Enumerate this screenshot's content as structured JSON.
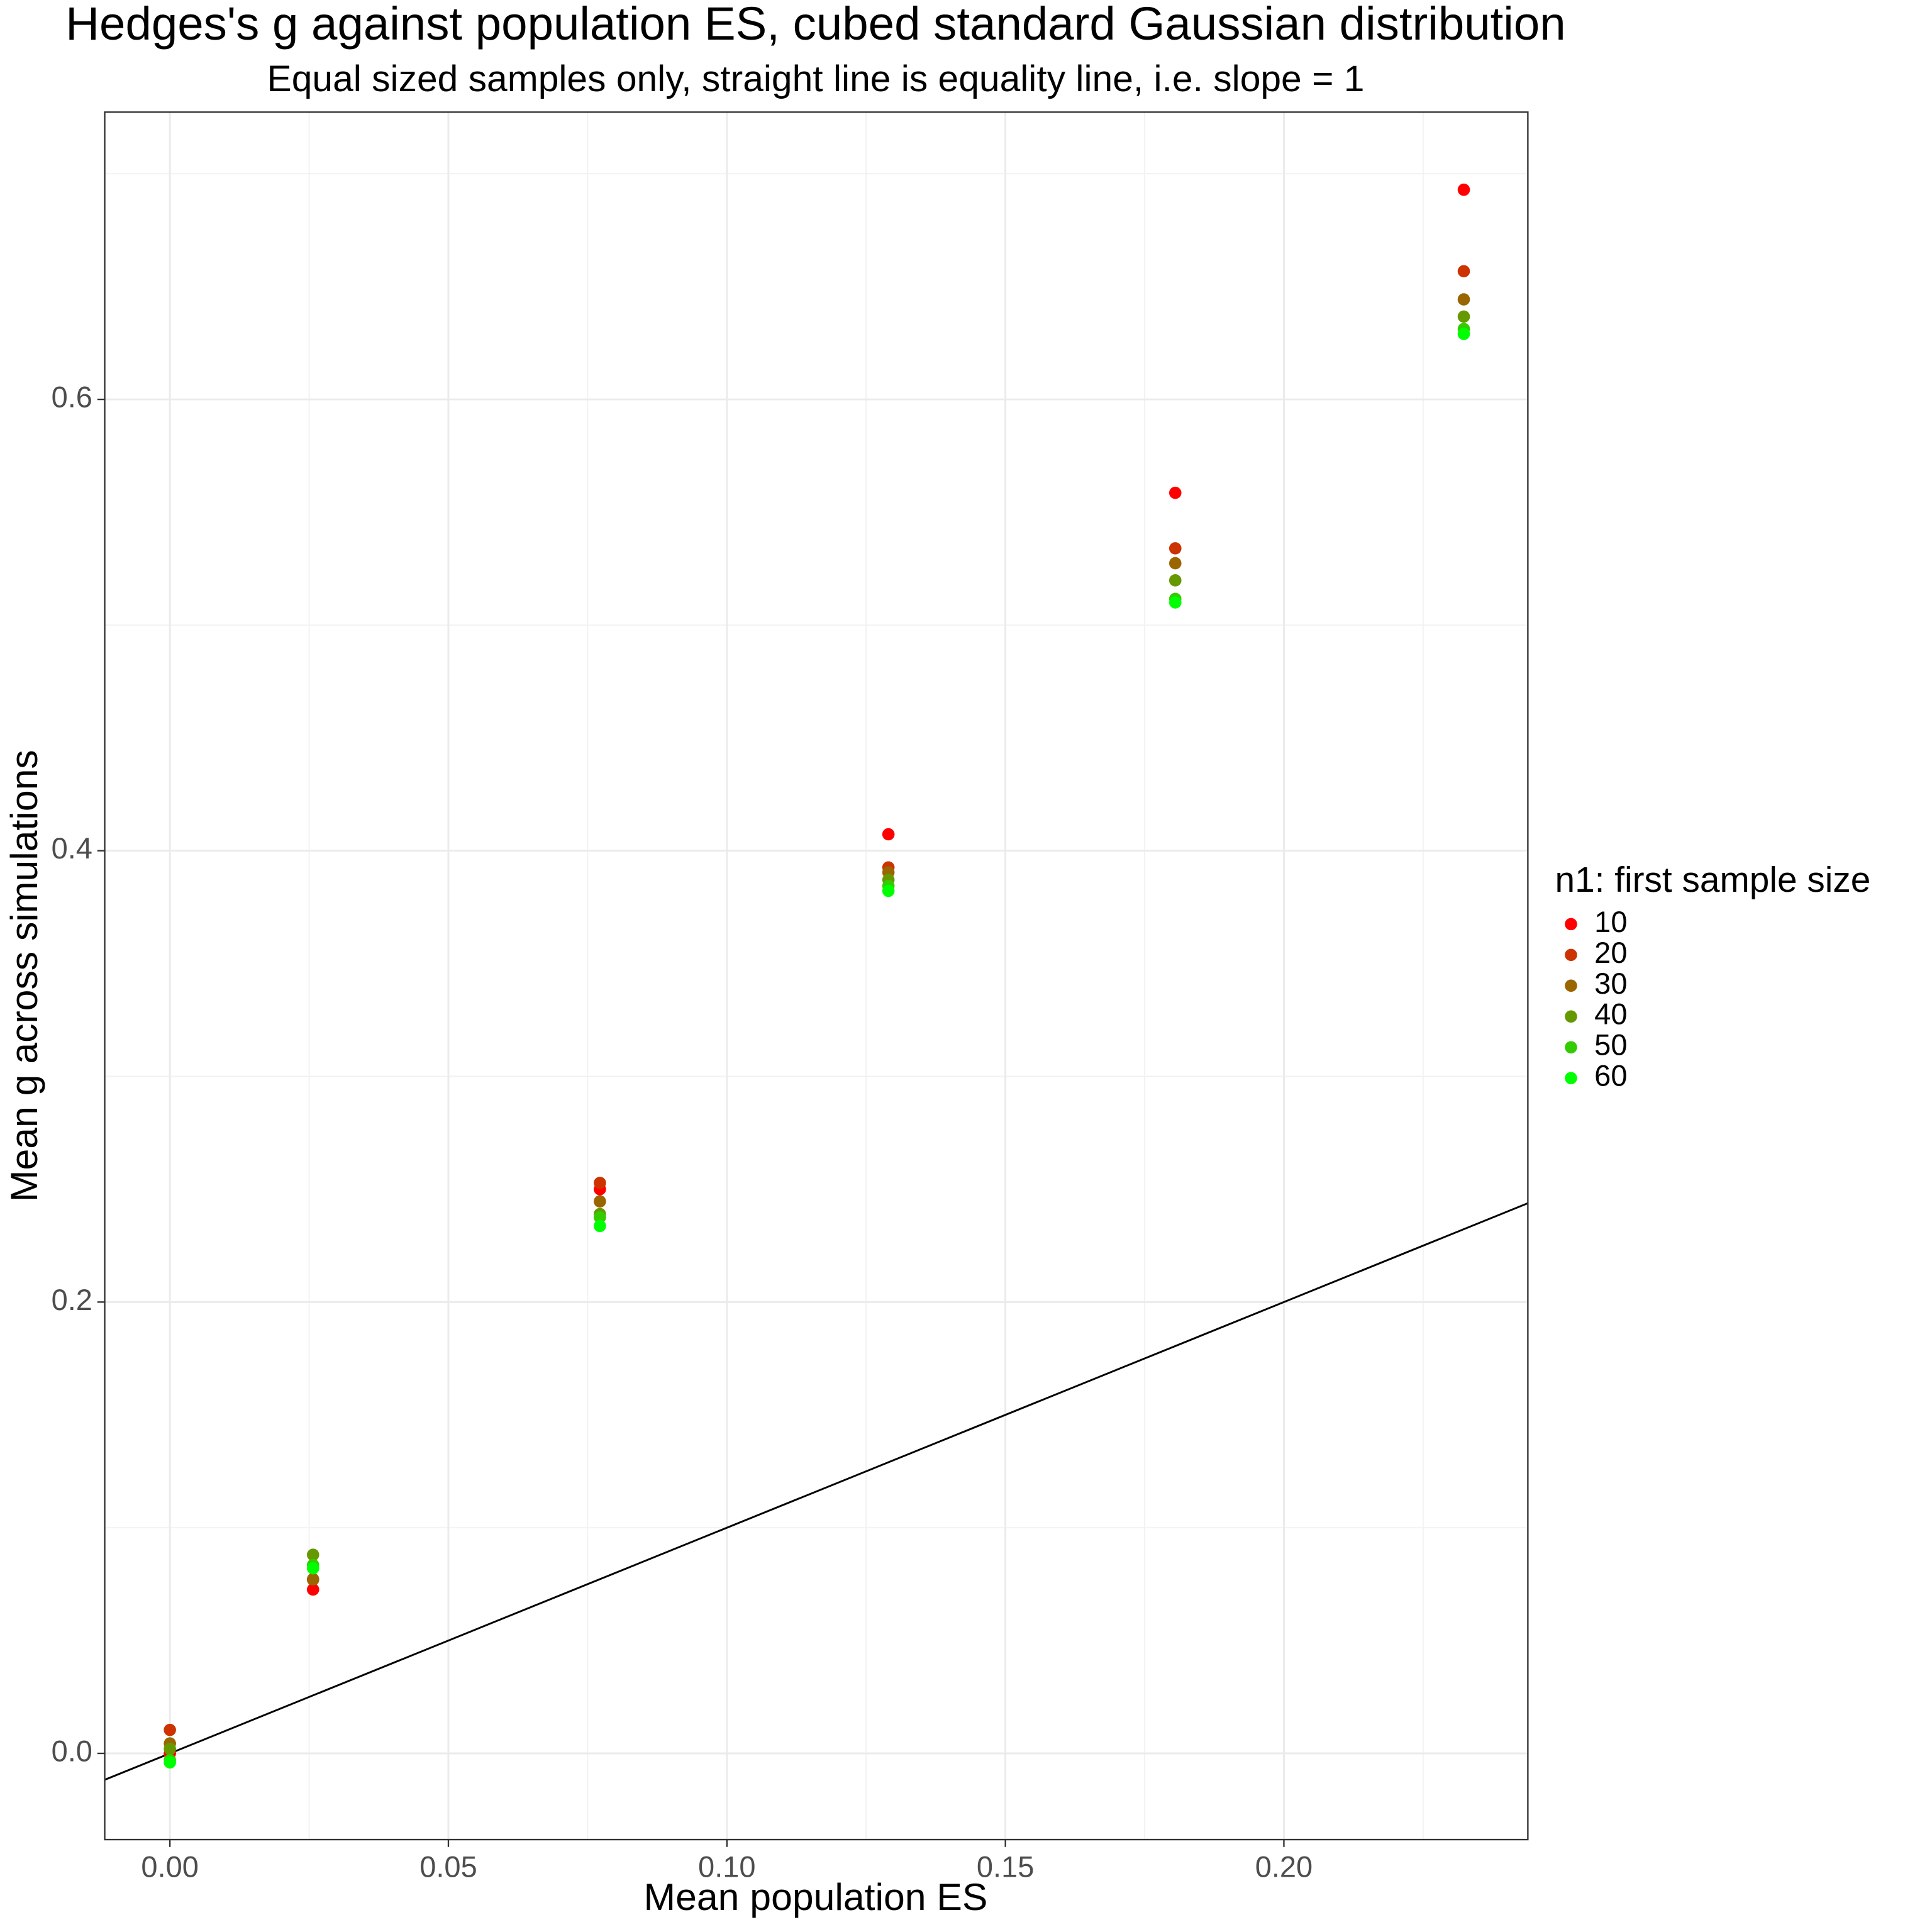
{
  "chart_data": {
    "type": "scatter",
    "title": "Hedges's g against population ES, cubed standard Gaussian distribution",
    "subtitle": "Equal sized samples only, straight line is equality line, i.e. slope = 1",
    "x_label": "Mean population ES",
    "y_label": "Mean g across simulations",
    "legend_title": "n1: first sample size",
    "legend_position": "right",
    "grid": true,
    "x": [
      0,
      0.0257,
      0.0772,
      0.129,
      0.1805,
      0.2323
    ],
    "series": [
      {
        "name": "10",
        "color": "#ff0000",
        "values": [
          0.0,
          0.0726,
          0.25,
          0.4073,
          0.5586,
          0.6929
        ]
      },
      {
        "name": "20",
        "color": "#cc3300",
        "values": [
          0.0104,
          0.077,
          0.2528,
          0.3926,
          0.534,
          0.6568
        ]
      },
      {
        "name": "30",
        "color": "#996600",
        "values": [
          0.0044,
          0.0772,
          0.2446,
          0.3904,
          0.5274,
          0.6443
        ]
      },
      {
        "name": "40",
        "color": "#669900",
        "values": [
          0.002,
          0.088,
          0.239,
          0.3871,
          0.5198,
          0.6367
        ]
      },
      {
        "name": "50",
        "color": "#33cc00",
        "values": [
          -0.003,
          0.0835,
          0.2375,
          0.3844,
          0.5116,
          0.6312
        ]
      },
      {
        "name": "60",
        "color": "#00ff00",
        "values": [
          -0.004,
          0.082,
          0.2337,
          0.3822,
          0.51,
          0.629
        ]
      }
    ],
    "abline": {
      "slope": 1,
      "intercept": 0,
      "color": "#000000"
    },
    "xlim": [
      -0.0117,
      0.2438
    ],
    "ylim": [
      -0.0382,
      0.7273
    ],
    "xticks": [
      {
        "value": 0,
        "label": "0.00"
      },
      {
        "value": 0.05,
        "label": "0.05"
      },
      {
        "value": 0.1,
        "label": "0.10"
      },
      {
        "value": 0.15,
        "label": "0.15"
      },
      {
        "value": 0.2,
        "label": "0.20"
      }
    ],
    "yticks": [
      {
        "value": 0,
        "label": "0.0"
      },
      {
        "value": 0.2,
        "label": "0.2"
      },
      {
        "value": 0.4,
        "label": "0.4"
      },
      {
        "value": 0.6,
        "label": "0.6"
      }
    ],
    "xminor": [
      0.025,
      0.075,
      0.125,
      0.175,
      0.225
    ],
    "yminor": [
      0.1,
      0.3,
      0.5,
      0.7
    ]
  }
}
